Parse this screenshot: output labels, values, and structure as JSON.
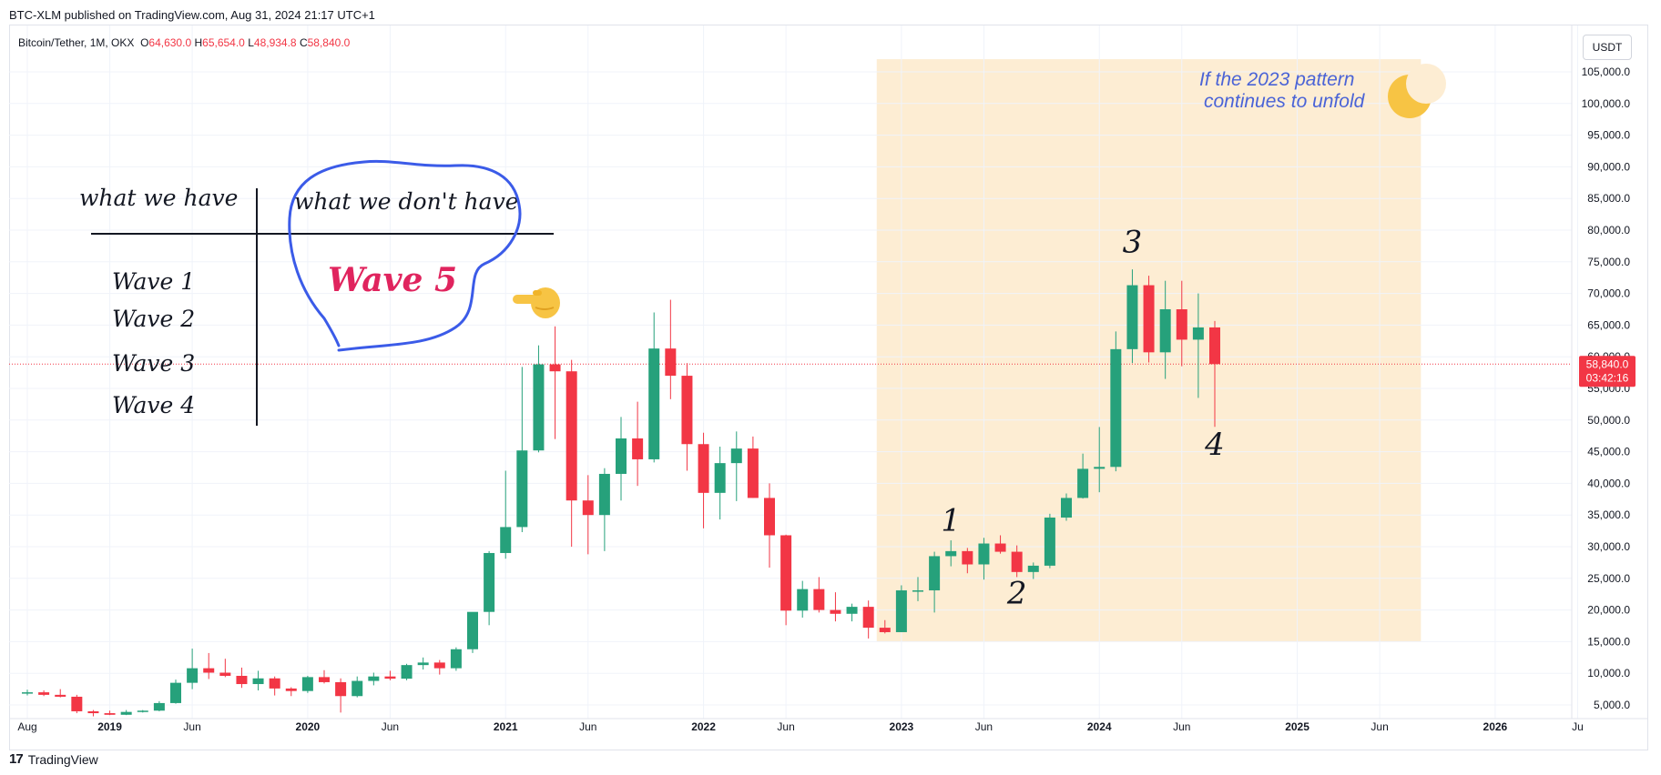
{
  "header": {
    "publish_line": "BTC-XLM published on TradingView.com, Aug 31, 2024 21:17 UTC+1"
  },
  "legend": {
    "symbol": "Bitcoin/Tether, 1M, OKX",
    "open_label": "O",
    "open": "64,630.0",
    "high_label": "H",
    "high": "65,654.0",
    "low_label": "L",
    "low": "48,934.8",
    "close_label": "C",
    "close": "58,840.0"
  },
  "currency": "USDT",
  "price_tag": {
    "value": "58,840.0",
    "countdown": "03:42:16"
  },
  "footer": {
    "brand": "TradingView"
  },
  "colors": {
    "up": "#26a17b",
    "down": "#f23645",
    "highlight": "#fdedd3",
    "pen_blue": "#3b5be8",
    "wave5": "#e0245e",
    "note_blue": "#4a63d6"
  },
  "annotations": {
    "table": {
      "have_header": "what we have",
      "dont_have_header": "what we don't have",
      "have_items": [
        "Wave 1",
        "Wave 2",
        "Wave 3",
        "Wave 4"
      ],
      "dont_have_item": "Wave 5"
    },
    "note_line1": "If the 2023 pattern",
    "note_line2": "continues to unfold",
    "wave_labels": [
      "1",
      "2",
      "3",
      "4"
    ],
    "pointer_icon": "pointing-hand-icon",
    "moon_icon": "crescent-moon-icon"
  },
  "chart_data": {
    "type": "candlestick",
    "symbol": "Bitcoin/Tether",
    "interval": "1M",
    "exchange": "OKX",
    "ylim": [
      5000,
      107000
    ],
    "y_ticks": [
      5000,
      10000,
      15000,
      20000,
      25000,
      30000,
      35000,
      40000,
      45000,
      50000,
      55000,
      60000,
      65000,
      70000,
      75000,
      80000,
      85000,
      90000,
      95000,
      100000,
      105000
    ],
    "x_ticks": [
      {
        "label": "Aug",
        "date": "2018-08"
      },
      {
        "label": "2019",
        "date": "2019-01"
      },
      {
        "label": "Jun",
        "date": "2019-06"
      },
      {
        "label": "2020",
        "date": "2020-01"
      },
      {
        "label": "Jun",
        "date": "2020-06"
      },
      {
        "label": "2021",
        "date": "2021-01"
      },
      {
        "label": "Jun",
        "date": "2021-06"
      },
      {
        "label": "2022",
        "date": "2022-01"
      },
      {
        "label": "Jun",
        "date": "2022-06"
      },
      {
        "label": "2023",
        "date": "2023-01"
      },
      {
        "label": "Jun",
        "date": "2023-06"
      },
      {
        "label": "2024",
        "date": "2024-01"
      },
      {
        "label": "Jun",
        "date": "2024-06"
      },
      {
        "label": "2025",
        "date": "2025-01"
      },
      {
        "label": "Jun",
        "date": "2025-06"
      },
      {
        "label": "2026",
        "date": "2026-01"
      },
      {
        "label": "Ju",
        "date": "2026-06"
      }
    ],
    "highlight_range": {
      "from": "2022-12",
      "to": "2025-08",
      "y_from": 15000,
      "y_to": 107000
    },
    "last_price_line": 58840,
    "wave_points": [
      {
        "label": "1",
        "date": "2023-04",
        "price": 32500
      },
      {
        "label": "2",
        "date": "2023-08",
        "price": 21000
      },
      {
        "label": "3",
        "date": "2024-03",
        "price": 76500
      },
      {
        "label": "4",
        "date": "2024-08",
        "price": 44500
      }
    ],
    "candles": [
      {
        "d": "2018-08",
        "o": 7000,
        "h": 7400,
        "l": 6500,
        "c": 7000
      },
      {
        "d": "2018-09",
        "o": 7000,
        "h": 7300,
        "l": 6400,
        "c": 6600
      },
      {
        "d": "2018-10",
        "o": 6600,
        "h": 7500,
        "l": 6200,
        "c": 6300
      },
      {
        "d": "2018-11",
        "o": 6300,
        "h": 6600,
        "l": 3700,
        "c": 4000
      },
      {
        "d": "2018-12",
        "o": 4000,
        "h": 4200,
        "l": 3200,
        "c": 3700
      },
      {
        "d": "2019-01",
        "o": 3700,
        "h": 4100,
        "l": 3400,
        "c": 3450
      },
      {
        "d": "2019-02",
        "o": 3450,
        "h": 4200,
        "l": 3400,
        "c": 3900
      },
      {
        "d": "2019-03",
        "o": 3900,
        "h": 4200,
        "l": 3800,
        "c": 4100
      },
      {
        "d": "2019-04",
        "o": 4100,
        "h": 5600,
        "l": 4000,
        "c": 5300
      },
      {
        "d": "2019-05",
        "o": 5300,
        "h": 9000,
        "l": 5200,
        "c": 8500
      },
      {
        "d": "2019-06",
        "o": 8500,
        "h": 13900,
        "l": 7500,
        "c": 10800
      },
      {
        "d": "2019-07",
        "o": 10800,
        "h": 13200,
        "l": 9100,
        "c": 10100
      },
      {
        "d": "2019-08",
        "o": 10100,
        "h": 12300,
        "l": 9400,
        "c": 9600
      },
      {
        "d": "2019-09",
        "o": 9600,
        "h": 10900,
        "l": 7700,
        "c": 8300
      },
      {
        "d": "2019-10",
        "o": 8300,
        "h": 10400,
        "l": 7300,
        "c": 9200
      },
      {
        "d": "2019-11",
        "o": 9200,
        "h": 9500,
        "l": 6500,
        "c": 7600
      },
      {
        "d": "2019-12",
        "o": 7600,
        "h": 7800,
        "l": 6400,
        "c": 7200
      },
      {
        "d": "2020-01",
        "o": 7200,
        "h": 9600,
        "l": 6900,
        "c": 9400
      },
      {
        "d": "2020-02",
        "o": 9400,
        "h": 10500,
        "l": 8400,
        "c": 8600
      },
      {
        "d": "2020-03",
        "o": 8600,
        "h": 9200,
        "l": 3800,
        "c": 6400
      },
      {
        "d": "2020-04",
        "o": 6400,
        "h": 9500,
        "l": 6200,
        "c": 8800
      },
      {
        "d": "2020-05",
        "o": 8800,
        "h": 10100,
        "l": 8100,
        "c": 9500
      },
      {
        "d": "2020-06",
        "o": 9500,
        "h": 10400,
        "l": 8900,
        "c": 9150
      },
      {
        "d": "2020-07",
        "o": 9150,
        "h": 11500,
        "l": 8900,
        "c": 11300
      },
      {
        "d": "2020-08",
        "o": 11300,
        "h": 12500,
        "l": 10600,
        "c": 11700
      },
      {
        "d": "2020-09",
        "o": 11700,
        "h": 12100,
        "l": 9800,
        "c": 10800
      },
      {
        "d": "2020-10",
        "o": 10800,
        "h": 14100,
        "l": 10400,
        "c": 13800
      },
      {
        "d": "2020-11",
        "o": 13800,
        "h": 19500,
        "l": 13200,
        "c": 19700
      },
      {
        "d": "2020-12",
        "o": 19700,
        "h": 29300,
        "l": 17600,
        "c": 29000
      },
      {
        "d": "2021-01",
        "o": 29000,
        "h": 42000,
        "l": 28100,
        "c": 33100
      },
      {
        "d": "2021-02",
        "o": 33100,
        "h": 58400,
        "l": 32300,
        "c": 45200
      },
      {
        "d": "2021-03",
        "o": 45200,
        "h": 61800,
        "l": 44900,
        "c": 58800
      },
      {
        "d": "2021-04",
        "o": 58800,
        "h": 64800,
        "l": 47000,
        "c": 57700
      },
      {
        "d": "2021-05",
        "o": 57700,
        "h": 59500,
        "l": 30000,
        "c": 37300
      },
      {
        "d": "2021-06",
        "o": 37300,
        "h": 41300,
        "l": 28800,
        "c": 35000
      },
      {
        "d": "2021-07",
        "o": 35000,
        "h": 42400,
        "l": 29300,
        "c": 41500
      },
      {
        "d": "2021-08",
        "o": 41500,
        "h": 50500,
        "l": 37300,
        "c": 47100
      },
      {
        "d": "2021-09",
        "o": 47100,
        "h": 52900,
        "l": 39600,
        "c": 43800
      },
      {
        "d": "2021-10",
        "o": 43800,
        "h": 67000,
        "l": 43300,
        "c": 61300
      },
      {
        "d": "2021-11",
        "o": 61300,
        "h": 69000,
        "l": 53300,
        "c": 57000
      },
      {
        "d": "2021-12",
        "o": 57000,
        "h": 59000,
        "l": 42000,
        "c": 46200
      },
      {
        "d": "2022-01",
        "o": 46200,
        "h": 48000,
        "l": 32900,
        "c": 38500
      },
      {
        "d": "2022-02",
        "o": 38500,
        "h": 45800,
        "l": 34300,
        "c": 43200
      },
      {
        "d": "2022-03",
        "o": 43200,
        "h": 48200,
        "l": 37200,
        "c": 45500
      },
      {
        "d": "2022-04",
        "o": 45500,
        "h": 47400,
        "l": 37700,
        "c": 37700
      },
      {
        "d": "2022-05",
        "o": 37700,
        "h": 40000,
        "l": 26700,
        "c": 31800
      },
      {
        "d": "2022-06",
        "o": 31800,
        "h": 31900,
        "l": 17600,
        "c": 19900
      },
      {
        "d": "2022-07",
        "o": 19900,
        "h": 24600,
        "l": 18800,
        "c": 23300
      },
      {
        "d": "2022-08",
        "o": 23300,
        "h": 25200,
        "l": 19600,
        "c": 20000
      },
      {
        "d": "2022-09",
        "o": 20000,
        "h": 22800,
        "l": 18200,
        "c": 19400
      },
      {
        "d": "2022-10",
        "o": 19400,
        "h": 21000,
        "l": 18200,
        "c": 20500
      },
      {
        "d": "2022-11",
        "o": 20500,
        "h": 21500,
        "l": 15500,
        "c": 17200
      },
      {
        "d": "2022-12",
        "o": 17200,
        "h": 18400,
        "l": 16300,
        "c": 16500
      },
      {
        "d": "2023-01",
        "o": 16500,
        "h": 23900,
        "l": 16500,
        "c": 23100
      },
      {
        "d": "2023-02",
        "o": 23100,
        "h": 25200,
        "l": 21400,
        "c": 23100
      },
      {
        "d": "2023-03",
        "o": 23100,
        "h": 29200,
        "l": 19600,
        "c": 28500
      },
      {
        "d": "2023-04",
        "o": 28500,
        "h": 31000,
        "l": 26900,
        "c": 29300
      },
      {
        "d": "2023-05",
        "o": 29300,
        "h": 29800,
        "l": 25800,
        "c": 27200
      },
      {
        "d": "2023-06",
        "o": 27200,
        "h": 31400,
        "l": 24800,
        "c": 30500
      },
      {
        "d": "2023-07",
        "o": 30500,
        "h": 31800,
        "l": 28900,
        "c": 29200
      },
      {
        "d": "2023-08",
        "o": 29200,
        "h": 30200,
        "l": 25200,
        "c": 26000
      },
      {
        "d": "2023-09",
        "o": 26000,
        "h": 27500,
        "l": 24900,
        "c": 27000
      },
      {
        "d": "2023-10",
        "o": 27000,
        "h": 35200,
        "l": 26600,
        "c": 34600
      },
      {
        "d": "2023-11",
        "o": 34600,
        "h": 38400,
        "l": 34100,
        "c": 37700
      },
      {
        "d": "2023-12",
        "o": 37700,
        "h": 44700,
        "l": 37600,
        "c": 42300
      },
      {
        "d": "2024-01",
        "o": 42300,
        "h": 48900,
        "l": 38600,
        "c": 42600
      },
      {
        "d": "2024-02",
        "o": 42600,
        "h": 64000,
        "l": 41900,
        "c": 61200
      },
      {
        "d": "2024-03",
        "o": 61200,
        "h": 73800,
        "l": 59000,
        "c": 71300
      },
      {
        "d": "2024-04",
        "o": 71300,
        "h": 72800,
        "l": 59100,
        "c": 60700
      },
      {
        "d": "2024-05",
        "o": 60700,
        "h": 72000,
        "l": 56500,
        "c": 67500
      },
      {
        "d": "2024-06",
        "o": 67500,
        "h": 72000,
        "l": 58500,
        "c": 62700
      },
      {
        "d": "2024-07",
        "o": 62700,
        "h": 70000,
        "l": 53500,
        "c": 64630
      },
      {
        "d": "2024-08",
        "o": 64630,
        "h": 65654,
        "l": 48934.8,
        "c": 58840
      }
    ]
  }
}
